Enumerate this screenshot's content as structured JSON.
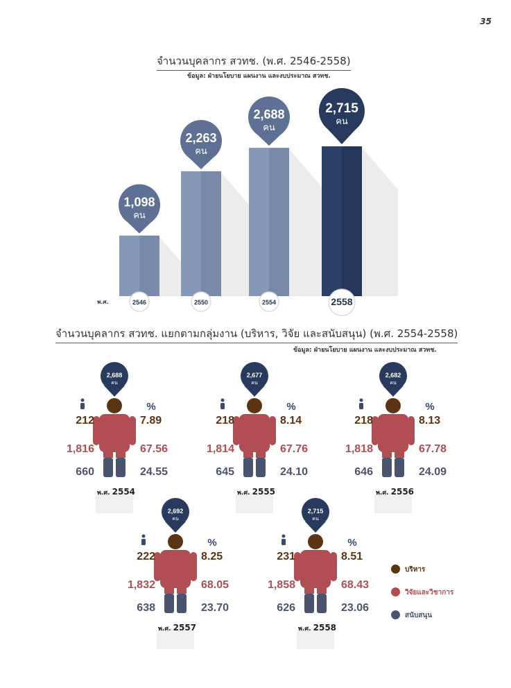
{
  "page_number": "35",
  "chart_data": [
    {
      "type": "bar",
      "title": "จำนวนบุคลากร สวทช.  (พ.ศ. 2546-2558)",
      "source": "ข้อมูล: ฝ่ายนโยบาย แผนงาน และงบประมาณ สวทช.",
      "x_prefix": "พ.ศ.",
      "categories": [
        "2546",
        "2550",
        "2554",
        "2558"
      ],
      "values": [
        1098,
        2263,
        2688,
        2715
      ],
      "value_labels": [
        "1,098",
        "2,263",
        "2,688",
        "2,715"
      ],
      "unit": "คน",
      "colors": {
        "bar": "#8193b3",
        "bar_light": "#7a8cab",
        "highlight": "#283a5e",
        "pin": "#5f7095"
      }
    },
    {
      "type": "table",
      "title": "จำนวนบุคลากร สวทช. แยกตามกลุ่มงาน (บริหาร, วิจัย และสนับสนุน) (พ.ศ. 2554-2558)",
      "source": "ข้อมูล: ฝ่ายนโยบาย แผนงาน และงบประมาณ สวทช.",
      "year_prefix": "พ.ศ.",
      "unit": "คน",
      "percent_symbol": "%",
      "groups": [
        "บริหาร",
        "วิจัยและวิชาการ",
        "สนับสนุน"
      ],
      "colors": {
        "admin": "#5b3413",
        "research": "#b14e54",
        "support": "#4a546e",
        "pin": "#283a5e"
      },
      "years": [
        {
          "year": "2554",
          "total": "2,688",
          "counts": [
            "212",
            "1,816",
            "660"
          ],
          "percents": [
            "7.89",
            "67.56",
            "24.55"
          ]
        },
        {
          "year": "2555",
          "total": "2,677",
          "counts": [
            "218",
            "1,814",
            "645"
          ],
          "percents": [
            "8.14",
            "67.76",
            "24.10"
          ]
        },
        {
          "year": "2556",
          "total": "2,682",
          "counts": [
            "218",
            "1,818",
            "646"
          ],
          "percents": [
            "8.13",
            "67.78",
            "24.09"
          ]
        },
        {
          "year": "2557",
          "total": "2,692",
          "counts": [
            "222",
            "1,832",
            "638"
          ],
          "percents": [
            "8.25",
            "68.05",
            "23.70"
          ]
        },
        {
          "year": "2558",
          "total": "2,715",
          "counts": [
            "231",
            "1,858",
            "626"
          ],
          "percents": [
            "8.51",
            "68.43",
            "23.06"
          ]
        }
      ]
    }
  ]
}
